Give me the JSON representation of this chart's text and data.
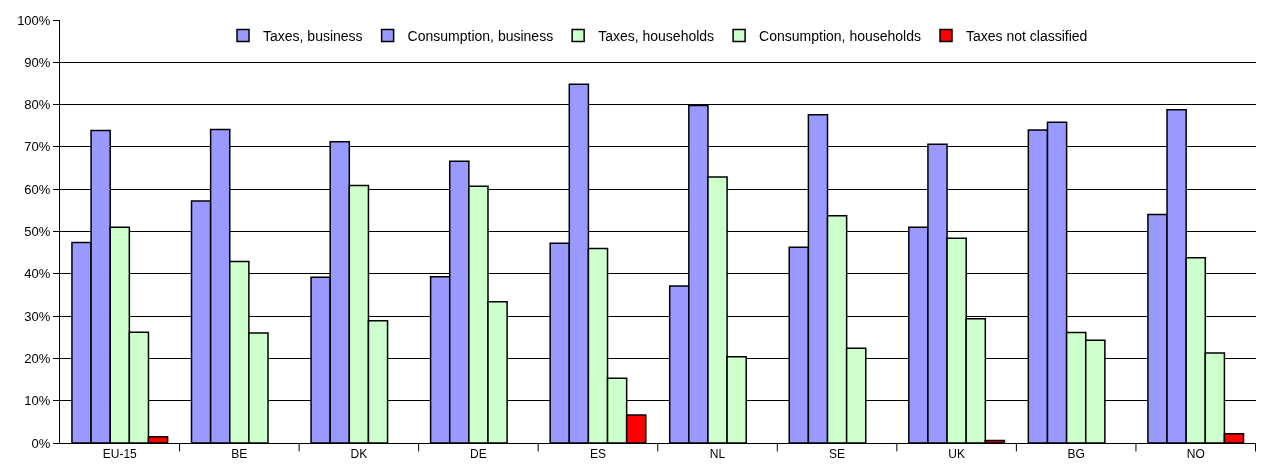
{
  "chart_data": {
    "type": "bar",
    "categories": [
      "EU-15",
      "BE",
      "DK",
      "DE",
      "ES",
      "NL",
      "SE",
      "UK",
      "BG",
      "NO"
    ],
    "series": [
      {
        "name": "Taxes, business",
        "color": "#9999ff",
        "values": [
          47.4,
          57.2,
          39.2,
          39.3,
          47.2,
          37.1,
          46.3,
          51,
          74,
          54
        ]
      },
      {
        "name": "Consumption, business",
        "color": "#9999ff",
        "values": [
          73.9,
          74.1,
          71.2,
          66.6,
          84.8,
          79.8,
          77.6,
          70.6,
          75.8,
          78.8
        ]
      },
      {
        "name": "Taxes, households",
        "color": "#ccffcc",
        "values": [
          51,
          42.9,
          60.9,
          60.7,
          46,
          62.9,
          53.7,
          48.4,
          26.1,
          43.8
        ]
      },
      {
        "name": "Consumption, households",
        "color": "#ccffcc",
        "values": [
          26.2,
          26,
          28.9,
          33.4,
          15.3,
          20.4,
          22.4,
          29.4,
          24.3,
          21.3
        ]
      },
      {
        "name": "Taxes not classified",
        "color": "#ff0000",
        "values": [
          1.5,
          null,
          null,
          null,
          6.6,
          null,
          null,
          0.6,
          null,
          2.2
        ]
      }
    ],
    "ylim": [
      0,
      100
    ],
    "yticks": [
      {
        "value": 0,
        "label": "0%"
      },
      {
        "value": 10,
        "label": "10%"
      },
      {
        "value": 20,
        "label": "20%"
      },
      {
        "value": 30,
        "label": "30%"
      },
      {
        "value": 40,
        "label": "40%"
      },
      {
        "value": 50,
        "label": "50%"
      },
      {
        "value": 60,
        "label": "60%"
      },
      {
        "value": 70,
        "label": "70%"
      },
      {
        "value": 80,
        "label": "80%"
      },
      {
        "value": 90,
        "label": "90%"
      },
      {
        "value": 100,
        "label": "100%"
      }
    ],
    "grid": "y",
    "legend": "top"
  }
}
